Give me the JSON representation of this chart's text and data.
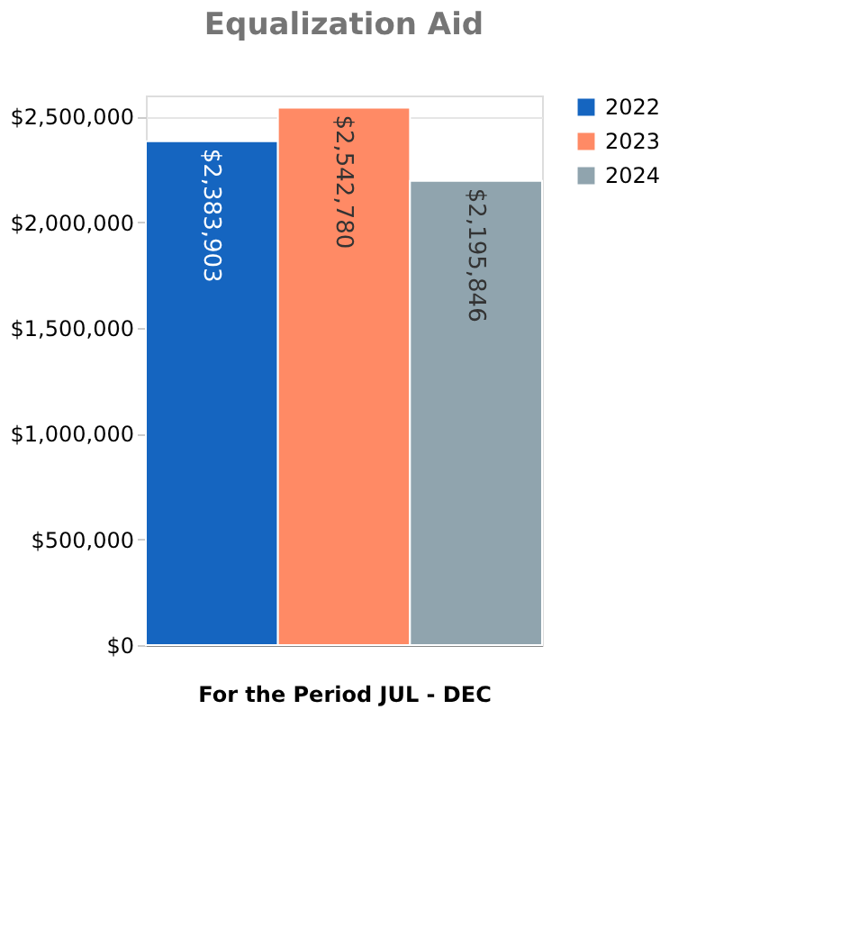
{
  "chart_data": {
    "type": "bar",
    "title": "Equalization Aid",
    "xlabel": "For the Period JUL - DEC",
    "categories": [
      null
    ],
    "series": [
      {
        "name": "2022",
        "color": "#1565c0",
        "values": [
          2383903
        ],
        "value_labels": [
          "$2,383,903"
        ]
      },
      {
        "name": "2023",
        "color": "#ff8a65",
        "values": [
          2542780
        ],
        "value_labels": [
          "$2,542,780"
        ]
      },
      {
        "name": "2024",
        "color": "#90a4ae",
        "values": [
          2195846
        ],
        "value_labels": [
          "$2,195,846"
        ]
      }
    ],
    "ylim": [
      0,
      2600000
    ],
    "yticks": [
      {
        "value": 0,
        "label": "$0"
      },
      {
        "value": 500000,
        "label": "$500,000"
      },
      {
        "value": 1000000,
        "label": "$1,000,000"
      },
      {
        "value": 1500000,
        "label": "$1,500,000"
      },
      {
        "value": 2000000,
        "label": "$2,000,000"
      },
      {
        "value": 2500000,
        "label": "$2,500,000"
      }
    ],
    "grid": "y",
    "legend": "top right"
  }
}
